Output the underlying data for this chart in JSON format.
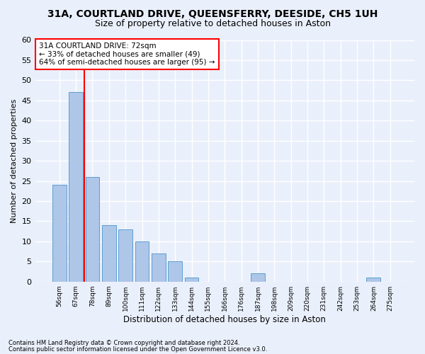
{
  "title": "31A, COURTLAND DRIVE, QUEENSFERRY, DEESIDE, CH5 1UH",
  "subtitle": "Size of property relative to detached houses in Aston",
  "xlabel": "Distribution of detached houses by size in Aston",
  "ylabel": "Number of detached properties",
  "categories": [
    "56sqm",
    "67sqm",
    "78sqm",
    "89sqm",
    "100sqm",
    "111sqm",
    "122sqm",
    "133sqm",
    "144sqm",
    "155sqm",
    "166sqm",
    "176sqm",
    "187sqm",
    "198sqm",
    "209sqm",
    "220sqm",
    "231sqm",
    "242sqm",
    "253sqm",
    "264sqm",
    "275sqm"
  ],
  "values": [
    24,
    47,
    26,
    14,
    13,
    10,
    7,
    5,
    1,
    0,
    0,
    0,
    2,
    0,
    0,
    0,
    0,
    0,
    0,
    1,
    0
  ],
  "bar_color": "#aec6e8",
  "bar_edge_color": "#5a9fd4",
  "red_line_x": 1.5,
  "annotation_title": "31A COURTLAND DRIVE: 72sqm",
  "annotation_line1": "← 33% of detached houses are smaller (49)",
  "annotation_line2": "64% of semi-detached houses are larger (95) →",
  "ylim": [
    0,
    60
  ],
  "yticks": [
    0,
    5,
    10,
    15,
    20,
    25,
    30,
    35,
    40,
    45,
    50,
    55,
    60
  ],
  "footnote1": "Contains HM Land Registry data © Crown copyright and database right 2024.",
  "footnote2": "Contains public sector information licensed under the Open Government Licence v3.0.",
  "background_color": "#eaf0fb",
  "grid_color": "#ffffff",
  "title_fontsize": 10,
  "subtitle_fontsize": 9
}
